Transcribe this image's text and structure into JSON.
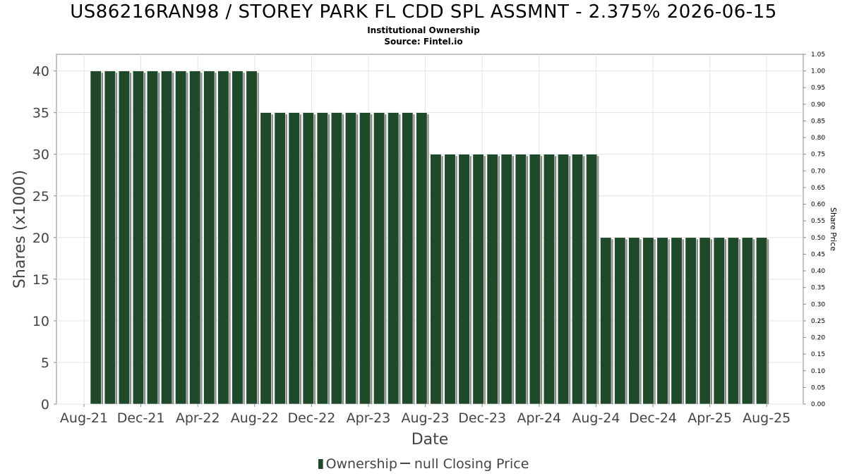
{
  "chart_data": {
    "type": "bar",
    "title": "US86216RAN98 / STOREY PARK FL CDD SPL ASSMNT - 2.375% 2026-06-15",
    "subtitle": "Institutional Ownership",
    "source": "Source: Fintel.io",
    "xlabel": "Date",
    "ylabel": "Shares (x1000)",
    "y2label": "Share Price",
    "ylim": [
      0,
      42
    ],
    "y2lim": [
      0,
      1.05
    ],
    "yticks": [
      0,
      5,
      10,
      15,
      20,
      25,
      30,
      35,
      40
    ],
    "y2ticks": [
      "0.00",
      "0.05",
      "0.10",
      "0.15",
      "0.20",
      "0.25",
      "0.30",
      "0.35",
      "0.40",
      "0.45",
      "0.50",
      "0.55",
      "0.60",
      "0.65",
      "0.70",
      "0.75",
      "0.80",
      "0.85",
      "0.90",
      "0.95",
      "1.00",
      "1.05"
    ],
    "xticks": [
      "Aug-21",
      "Dec-21",
      "Apr-22",
      "Aug-22",
      "Dec-22",
      "Apr-23",
      "Aug-23",
      "Dec-23",
      "Apr-24",
      "Aug-24",
      "Dec-24",
      "Apr-25",
      "Aug-25"
    ],
    "grid": true,
    "series": [
      {
        "name": "Ownership",
        "color": "#1e4a2a",
        "values": [
          40,
          40,
          40,
          40,
          40,
          40,
          40,
          40,
          40,
          40,
          40,
          40,
          35,
          35,
          35,
          35,
          35,
          35,
          35,
          35,
          35,
          35,
          35,
          35,
          30,
          30,
          30,
          30,
          30,
          30,
          30,
          30,
          30,
          30,
          30,
          30,
          20,
          20,
          20,
          20,
          20,
          20,
          20,
          20,
          20,
          20,
          20,
          20
        ]
      }
    ],
    "legend": {
      "placement": "bottom",
      "items": [
        "Ownership",
        "null Closing Price"
      ]
    }
  }
}
